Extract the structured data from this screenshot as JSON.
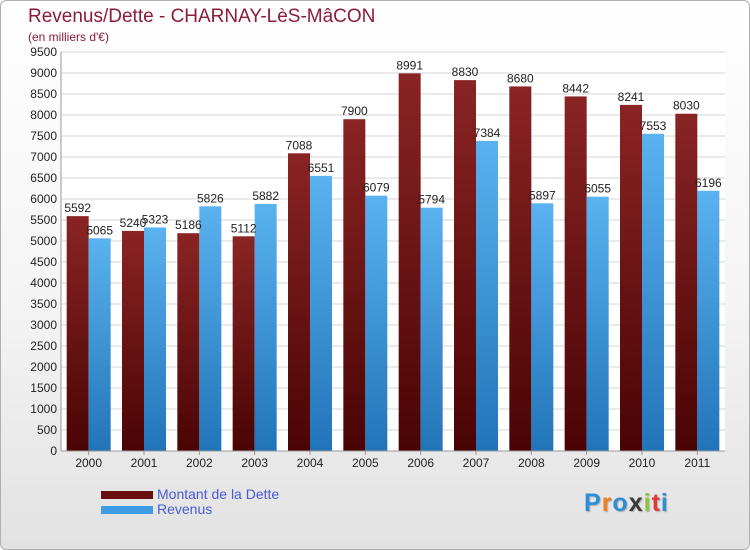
{
  "chart_data": {
    "type": "bar",
    "title": "Revenus/Dette - CHARNAY-LèS-MâCON",
    "subtitle": "(en milliers d'€)",
    "categories": [
      "2000",
      "2001",
      "2002",
      "2003",
      "2004",
      "2005",
      "2006",
      "2007",
      "2008",
      "2009",
      "2010",
      "2011"
    ],
    "series": [
      {
        "name": "Montant de la Dette",
        "color": "#7a1616",
        "values": [
          5592,
          5240,
          5186,
          5112,
          7088,
          7900,
          8991,
          8830,
          8680,
          8442,
          8241,
          8030
        ]
      },
      {
        "name": "Revenus",
        "color": "#3d9ce4",
        "values": [
          5065,
          5323,
          5826,
          5882,
          6551,
          6079,
          5794,
          7384,
          5897,
          6055,
          7553,
          6196
        ]
      }
    ],
    "yticks": [
      0,
      500,
      1000,
      1500,
      2000,
      2500,
      3000,
      3500,
      4000,
      4500,
      5000,
      5500,
      6000,
      6500,
      7000,
      7500,
      8000,
      8500,
      9000,
      9500
    ],
    "ylim": [
      0,
      9500
    ],
    "grid": true,
    "legend_position": "bottom-left"
  },
  "logo": {
    "letters": [
      "P",
      "r",
      "o",
      "x",
      "i",
      "t",
      "i"
    ],
    "colors": [
      "#2a8fd6",
      "#f07d1a",
      "#2a8fd6",
      "#3a3a3a",
      "#8cc63f",
      "#e03a3a",
      "#2a8fd6"
    ]
  }
}
